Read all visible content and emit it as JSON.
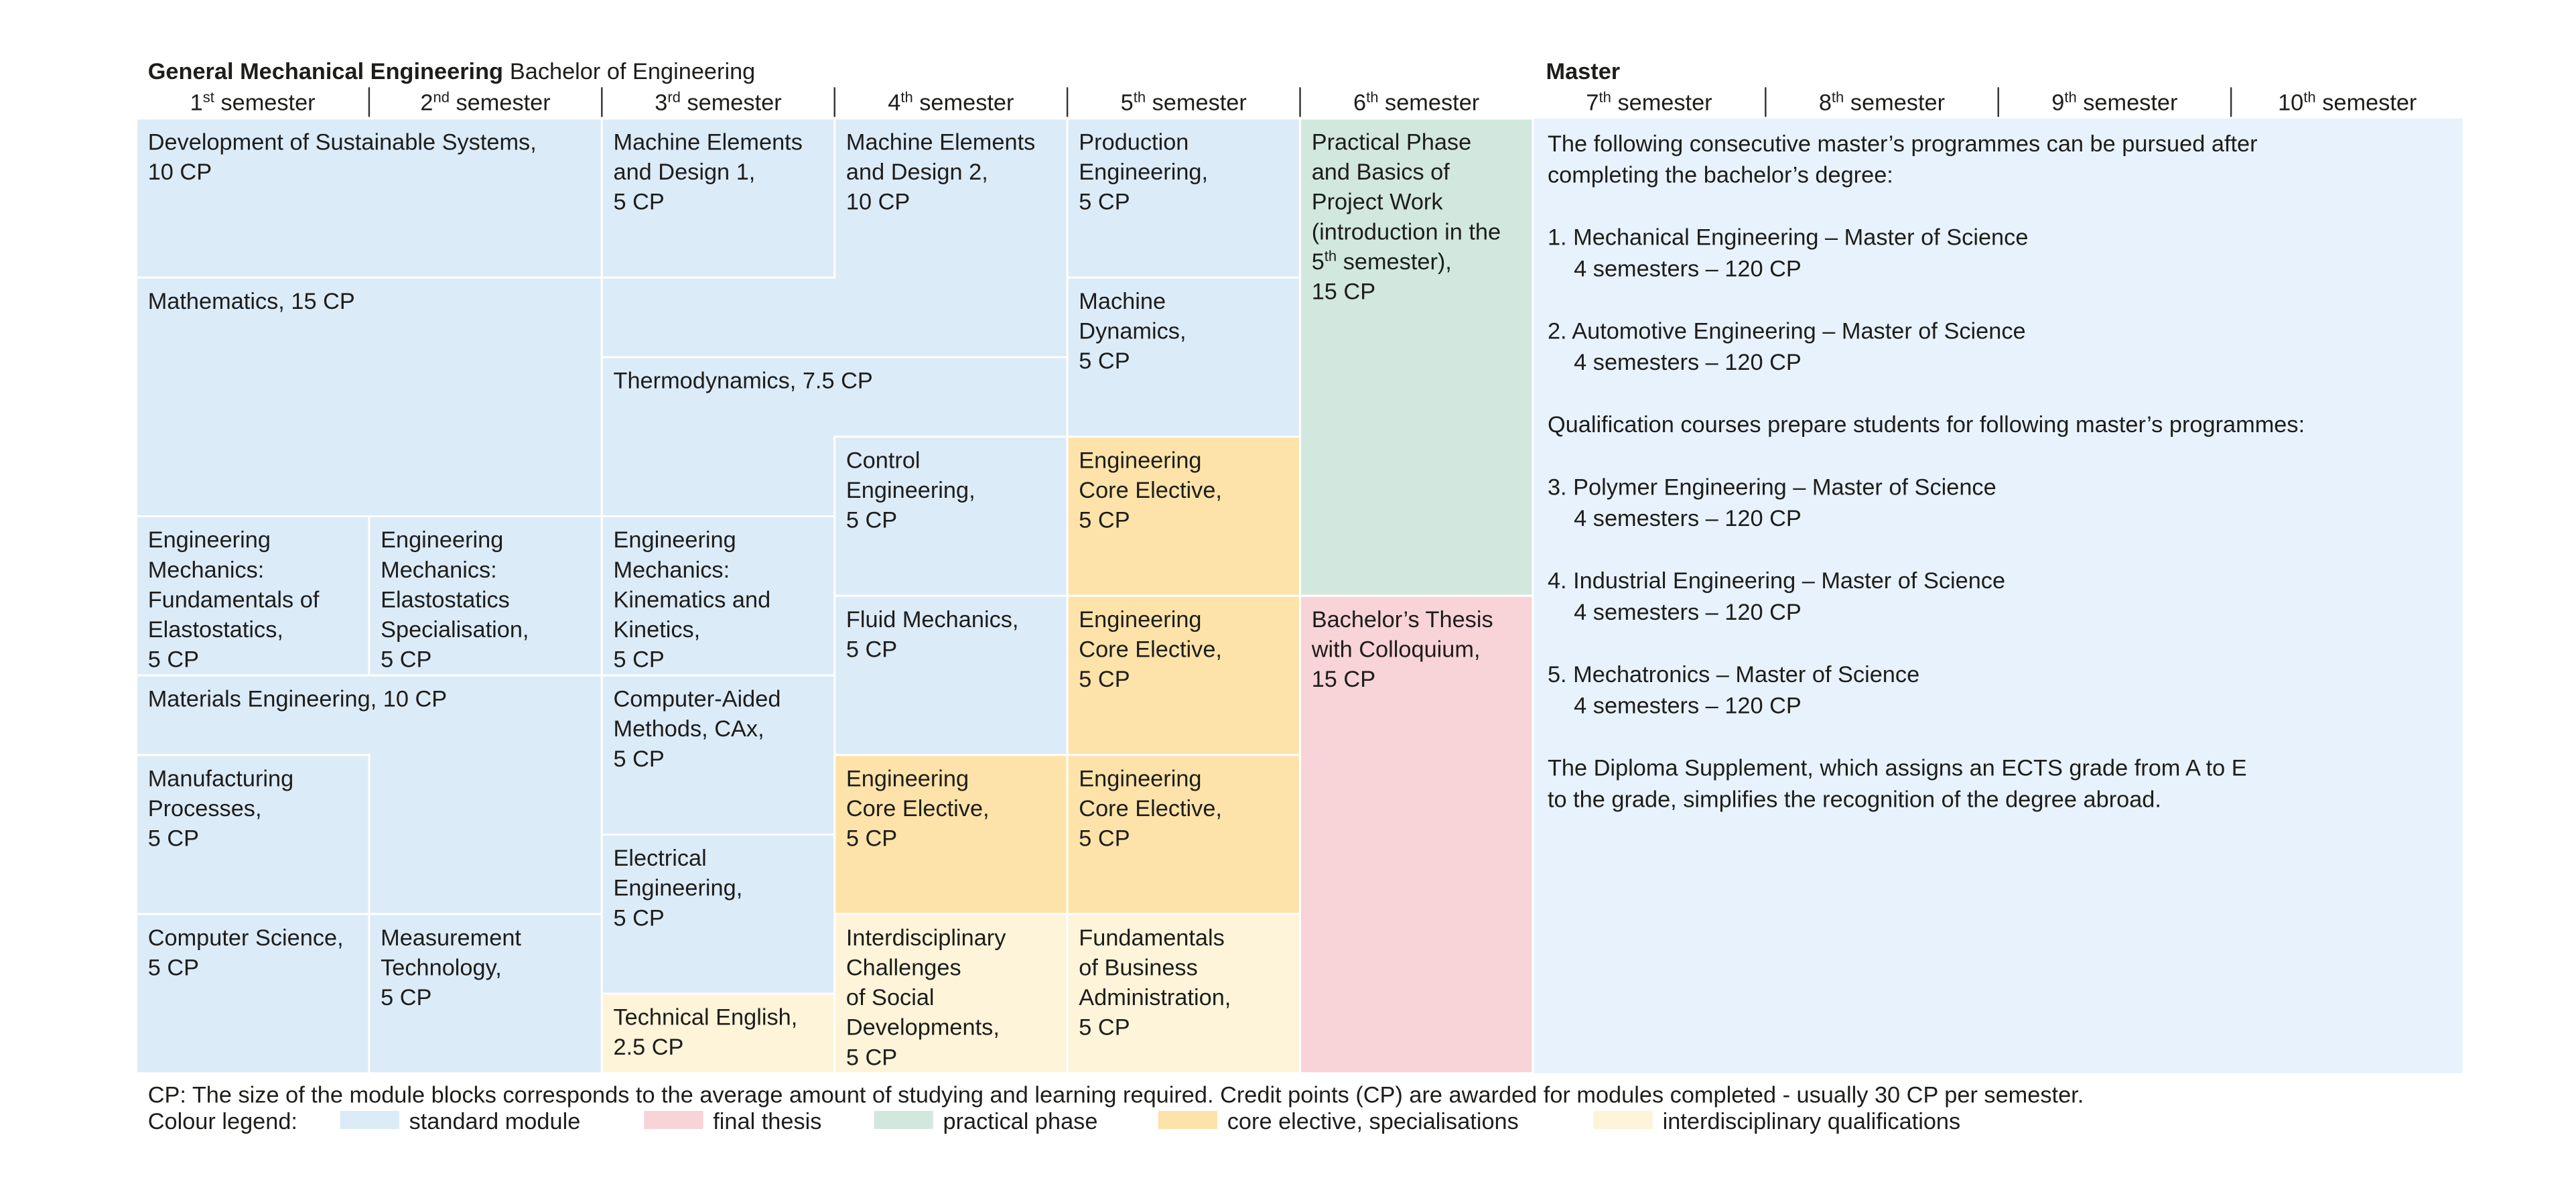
{
  "header": {
    "title_bold": "General Mechanical Engineering",
    "title_rest": "Bachelor of Engineering",
    "master": "Master"
  },
  "semesters": [
    [
      "1",
      "st",
      " semester"
    ],
    [
      "2",
      "nd",
      " semester"
    ],
    [
      "3",
      "rd",
      " semester"
    ],
    [
      "4",
      "th",
      " semester"
    ],
    [
      "5",
      "th",
      " semester"
    ],
    [
      "6",
      "th",
      " semester"
    ],
    [
      "7",
      "th",
      " semester"
    ],
    [
      "8",
      "th",
      " semester"
    ],
    [
      "9",
      "th",
      " semester"
    ],
    [
      "10",
      "th",
      " semester"
    ]
  ],
  "modules": [
    {
      "lines": [
        "Development of Sustainable Systems,",
        "10 CP"
      ]
    },
    {
      "lines": [
        "Mathematics, 15 CP"
      ]
    },
    {
      "lines": [
        "Engineering",
        "Mechanics:",
        "Fundamentals of",
        "Elastostatics,",
        "5 CP"
      ]
    },
    {
      "lines": [
        "Engineering",
        "Mechanics:",
        "Elastostatics",
        "Specialisation,",
        "5 CP"
      ]
    },
    {
      "lines": [
        "Materials Engineering, 10 CP"
      ]
    },
    {
      "lines": [
        "Manufacturing",
        "Processes,",
        "5 CP"
      ]
    },
    {
      "lines": [
        "Computer Science,",
        "5 CP"
      ]
    },
    {
      "lines": [
        "Measurement",
        "Technology,",
        "5 CP"
      ]
    },
    {
      "lines": [
        "Machine Elements",
        "and Design 1,",
        "5 CP"
      ]
    },
    {
      "lines": [
        "Machine Elements",
        "and Design 2,",
        "10 CP"
      ]
    },
    {
      "lines": [
        "Thermodynamics, 7.5 CP"
      ]
    },
    {
      "lines": [
        "Engineering",
        "Mechanics:",
        "Kinematics and",
        "Kinetics,",
        "5 CP"
      ]
    },
    {
      "lines": [
        "Computer-Aided",
        "Methods, CAx,",
        "5 CP"
      ]
    },
    {
      "lines": [
        "Electrical",
        "Engineering,",
        "5 CP"
      ]
    },
    {
      "lines": [
        "Technical English,",
        "2.5 CP"
      ]
    },
    {
      "lines": [
        "Control",
        "Engineering,",
        "5 CP"
      ]
    },
    {
      "lines": [
        "Fluid Mechanics,",
        "5 CP"
      ]
    },
    {
      "lines": [
        "Engineering",
        "Core Elective,",
        "5 CP"
      ]
    },
    {
      "lines": [
        "Interdisciplinary",
        "Challenges",
        "of Social",
        "Developments,",
        "5 CP"
      ]
    },
    {
      "lines": [
        "Production",
        "Engineering,",
        "5 CP"
      ]
    },
    {
      "lines": [
        "Machine",
        "Dynamics,",
        "5 CP"
      ]
    },
    {
      "lines": [
        "Engineering",
        "Core Elective,",
        "5 CP"
      ]
    },
    {
      "lines": [
        "Engineering",
        "Core Elective,",
        "5 CP"
      ]
    },
    {
      "lines": [
        "Engineering",
        "Core Elective,",
        "5 CP"
      ]
    },
    {
      "lines": [
        "Fundamentals",
        "of Business",
        "Administration,",
        "5 CP"
      ]
    },
    {
      "lines": [
        "Practical Phase",
        "and Basics of",
        "Project Work",
        "(introduction in the",
        [
          "5",
          "th",
          " semester),"
        ],
        "15 CP"
      ]
    },
    {
      "lines": [
        "Bachelor’s Thesis",
        "with Colloquium,",
        "15 CP"
      ]
    }
  ],
  "master": {
    "intro": [
      "The following consecutive master’s programmes can be pursued after",
      "completing the bachelor’s degree:"
    ],
    "programmes": [
      {
        "heading": "1. Mechanical Engineering – Master of Science",
        "detail": "4 semesters – 120 CP"
      },
      {
        "heading": "2. Automotive Engineering – Master of Science",
        "detail": "4 semesters – 120 CP"
      }
    ],
    "qualification_note": "Qualification courses prepare students for following master’s programmes:",
    "qualification_programmes": [
      {
        "heading": "3. Polymer Engineering – Master of Science",
        "detail": "4 semesters – 120 CP"
      },
      {
        "heading": "4. Industrial Engineering – Master of Science",
        "detail": "4 semesters – 120 CP"
      },
      {
        "heading": "5. Mechatronics – Master of Science",
        "detail": "4 semesters – 120 CP"
      }
    ],
    "supplement": [
      "The Diploma Supplement, which assigns an ECTS grade from A to E",
      "to the grade, simplifies the recognition of the degree abroad."
    ],
    "color": "#e8f2fc"
  },
  "footer": {
    "note": "CP: The size of the module blocks corresponds to the average amount of studying and learning required. Credit points (CP) are awarded for modules completed - usually 30 CP per semester.",
    "legend_title": "Colour legend:",
    "legend": [
      {
        "label": "standard module",
        "color": "#dcebf8"
      },
      {
        "label": "final thesis",
        "color": "#f8d3d8"
      },
      {
        "label": "practical phase",
        "color": "#d2e8df"
      },
      {
        "label": "core elective, specialisations",
        "color": "#fde3a9"
      },
      {
        "label": "interdisciplinary qualifications",
        "color": "#fdf4d9"
      }
    ]
  }
}
